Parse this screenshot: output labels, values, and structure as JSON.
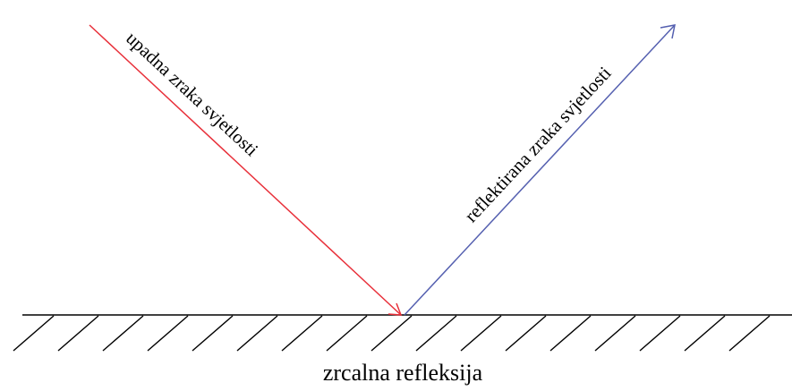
{
  "labels": {
    "incident": "upadna zraka svjetlosti",
    "reflected": "reflektirana zraka svjetlosti",
    "caption": "zrcalna refleksija"
  },
  "colors": {
    "incident_ray": "#e8303a",
    "reflected_ray": "#5560b0",
    "surface": "#000000",
    "text": "#000000"
  }
}
